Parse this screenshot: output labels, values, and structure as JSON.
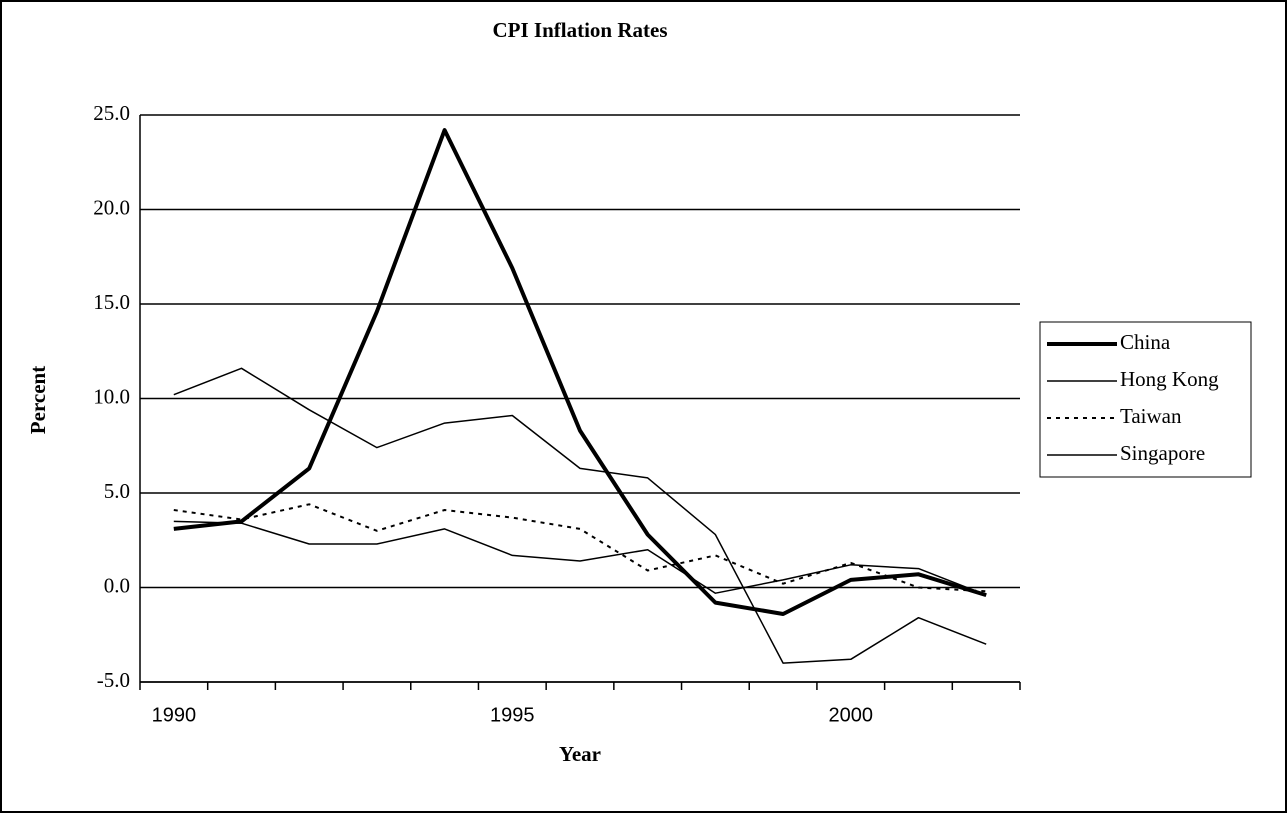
{
  "chart_data": {
    "type": "line",
    "title": "CPI Inflation Rates",
    "x_label": "Year",
    "y_label": "Percent",
    "categories": [
      "1990",
      null,
      null,
      null,
      null,
      "1995",
      null,
      null,
      null,
      null,
      "2000",
      null,
      null
    ],
    "series": [
      {
        "name": "China",
        "color": "#000000",
        "width": 4,
        "dash": "none",
        "values": [
          3.1,
          3.5,
          6.3,
          14.6,
          24.2,
          16.9,
          8.3,
          2.8,
          -0.8,
          -1.4,
          0.4,
          0.7,
          -0.4
        ]
      },
      {
        "name": "Hong Kong",
        "color": "#000000",
        "width": 1.5,
        "dash": "none",
        "values": [
          10.2,
          11.6,
          9.4,
          7.4,
          8.7,
          9.1,
          6.3,
          5.8,
          2.8,
          -4.0,
          -3.8,
          -1.6,
          -3.0
        ]
      },
      {
        "name": "Taiwan",
        "color": "#000000",
        "width": 2,
        "dash": "4 5",
        "values": [
          4.1,
          3.6,
          4.4,
          3.0,
          4.1,
          3.7,
          3.1,
          0.9,
          1.7,
          0.2,
          1.3,
          0.0,
          -0.2
        ]
      },
      {
        "name": "Singapore",
        "color": "#000000",
        "width": 1.5,
        "dash": "none",
        "values": [
          3.5,
          3.4,
          2.3,
          2.3,
          3.1,
          1.7,
          1.4,
          2.0,
          -0.3,
          0.4,
          1.2,
          1.0,
          -0.4
        ]
      }
    ],
    "ylim": [
      -5,
      25
    ],
    "yticks": [
      {
        "value": -5,
        "label": "-5.0"
      },
      {
        "value": 0,
        "label": "0.0"
      },
      {
        "value": 5,
        "label": "5.0"
      },
      {
        "value": 10,
        "label": "10.0"
      },
      {
        "value": 15,
        "label": "15.0"
      },
      {
        "value": 20,
        "label": "20.0"
      },
      {
        "value": 25,
        "label": "25.0"
      }
    ],
    "grid": true,
    "legend": "right"
  }
}
